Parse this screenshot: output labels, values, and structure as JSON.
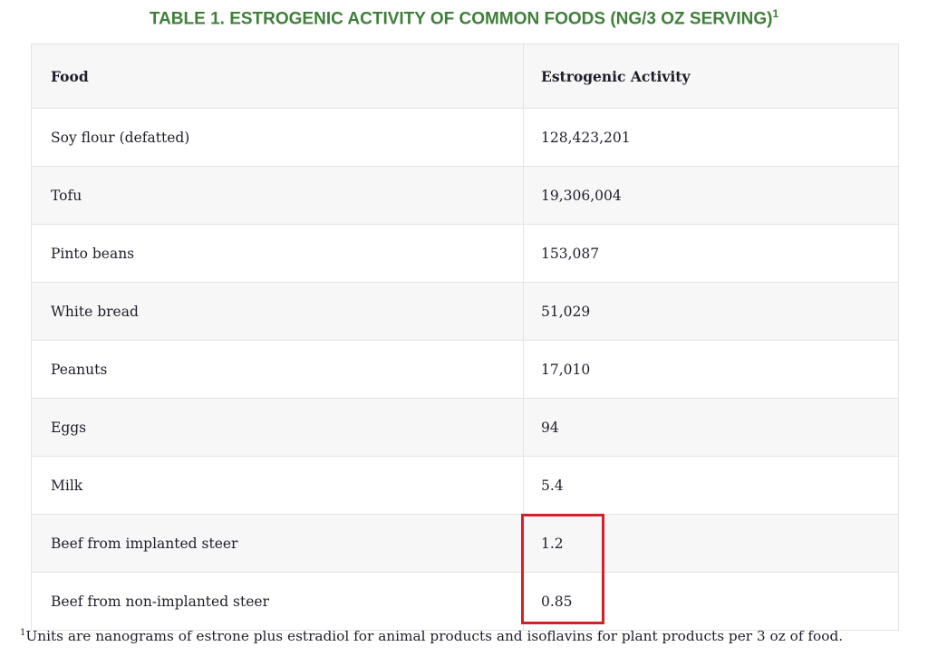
{
  "title": {
    "text": "TABLE 1. ESTROGENIC ACTIVITY OF COMMON FOODS (NG/3 OZ SERVING)",
    "sup": "1"
  },
  "table": {
    "header": [
      "Food",
      "Estrogenic Activity"
    ],
    "rows": [
      [
        "Soy flour (defatted)",
        "128,423,201"
      ],
      [
        "Tofu",
        "19,306,004"
      ],
      [
        "Pinto beans",
        "153,087"
      ],
      [
        "White bread",
        "51,029"
      ],
      [
        "Peanuts",
        "17,010"
      ],
      [
        "Eggs",
        "94"
      ],
      [
        "Milk",
        "5.4"
      ],
      [
        "Beef from implanted steer",
        "1.2"
      ],
      [
        "Beef from non-implanted steer",
        "0.85"
      ]
    ]
  },
  "footnote": {
    "sup": "1",
    "text": "Units are nanograms of estrone plus estradiol for animal products and isoflavins for plant products per 3 oz of food."
  }
}
